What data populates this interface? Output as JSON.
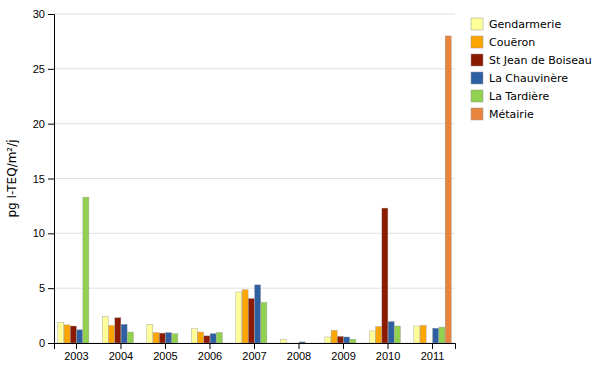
{
  "chart_data": {
    "type": "bar",
    "categories": [
      "2003",
      "2004",
      "2005",
      "2006",
      "2007",
      "2008",
      "2009",
      "2010",
      "2011"
    ],
    "series": [
      {
        "name": "Gendarmerie",
        "color": "#FFFF99",
        "values": [
          1.9,
          2.4,
          1.7,
          1.3,
          4.65,
          0.35,
          0.55,
          1.1,
          1.55
        ]
      },
      {
        "name": "Couëron",
        "color": "#FFA500",
        "values": [
          1.65,
          1.6,
          0.95,
          1.0,
          4.85,
          0.0,
          1.15,
          1.5,
          1.6
        ]
      },
      {
        "name": "St Jean de Boiseau",
        "color": "#8B1A00",
        "values": [
          1.55,
          2.3,
          0.9,
          0.65,
          4.05,
          0.0,
          0.6,
          12.3,
          0.0
        ]
      },
      {
        "name": "La Chauvinère",
        "color": "#2E5FA3",
        "values": [
          1.2,
          1.7,
          0.95,
          0.85,
          5.3,
          0.1,
          0.55,
          1.95,
          1.35
        ]
      },
      {
        "name": "La Tardière",
        "color": "#92D050",
        "values": [
          13.3,
          1.0,
          0.85,
          0.95,
          3.7,
          0.0,
          0.35,
          1.55,
          1.45
        ]
      },
      {
        "name": "Métairie",
        "color": "#E8843C",
        "values": [
          0.0,
          0.0,
          0.0,
          0.0,
          0.0,
          0.0,
          0.0,
          0.0,
          28.0
        ]
      }
    ],
    "y_label": "pg I-TEQ/m²/j",
    "ylim": [
      0,
      30
    ],
    "yticks": [
      0,
      5,
      10,
      15,
      20,
      25,
      30
    ],
    "grid": true,
    "legend": "upper right"
  }
}
